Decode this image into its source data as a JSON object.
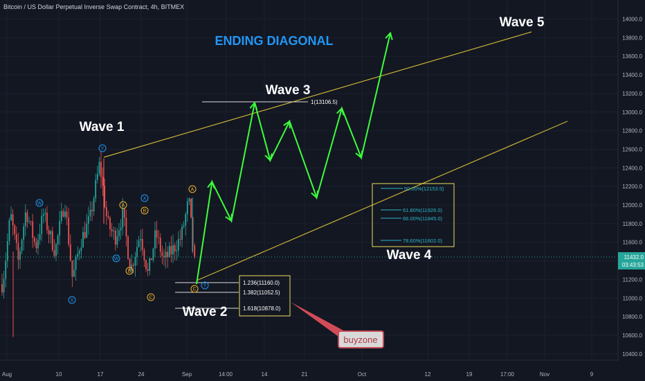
{
  "header": {
    "title": "Bitcoin / US Dollar Perpetual Inverse Swap Contract, 4h, BITMEX"
  },
  "colors": {
    "bg": "#131722",
    "grid": "#1c2030",
    "axis_text": "#b2b5be",
    "up_candle": "#26a69a",
    "down_candle": "#ef5350",
    "wave_arrow": "#3dff3d",
    "trendline": "#c9b236",
    "fib_box": "#e8e05a",
    "fib_text": "#2bb7c9",
    "headline": "#2196f3",
    "price_badge": "#26a69a"
  },
  "annotations": {
    "headline": "ENDING DIAGONAL",
    "wave_labels": [
      "Wave 1",
      "Wave 2",
      "Wave 3",
      "Wave 4",
      "Wave 5"
    ],
    "wave3_target": "1(13106.5)",
    "buyzone_levels": [
      "1.236(11160.0)",
      "1.382(11052.5)",
      "1.618(10878.0)"
    ],
    "retrace_levels": [
      "50.00%(12153.5)",
      "61.80%(11926.0)",
      "66.00%(11845.0)",
      "78.60%(11602.0)"
    ],
    "callout": "buyzone",
    "elliott_markers": [
      {
        "label": "W",
        "color": "#2196f3"
      },
      {
        "label": "X",
        "color": "#2196f3"
      },
      {
        "label": "Y",
        "color": "#2196f3"
      },
      {
        "label": "W",
        "color": "#2196f3"
      },
      {
        "label": "X",
        "color": "#2196f3"
      },
      {
        "label": "Y",
        "color": "#2196f3"
      },
      {
        "label": "A",
        "color": "#f0b429"
      },
      {
        "label": "B",
        "color": "#f0b429"
      },
      {
        "label": "C",
        "color": "#f0b429"
      },
      {
        "label": "A",
        "color": "#f0b429"
      },
      {
        "label": "B",
        "color": "#f0b429"
      },
      {
        "label": "C",
        "color": "#f0b429"
      }
    ]
  },
  "price_badge": {
    "price": "11432.0",
    "countdown": "03:43:53"
  },
  "chart_data": {
    "type": "line",
    "title": "Bitcoin / US Dollar Perpetual Inverse Swap Contract, 4h, BITMEX",
    "xlabel": "",
    "ylabel": "",
    "x_tick_labels": [
      "Aug",
      "10",
      "17",
      "24",
      "Sep",
      "14:00",
      "14",
      "21",
      "Oct",
      "12",
      "19",
      "17:00",
      "Nov",
      "9"
    ],
    "y_tick_labels": [
      "10400.0",
      "10600.0",
      "10800.0",
      "11000.0",
      "11200.0",
      "11400.0",
      "11600.0",
      "11800.0",
      "12000.0",
      "12200.0",
      "12400.0",
      "12600.0",
      "12800.0",
      "13000.0",
      "13200.0",
      "13400.0",
      "13600.0",
      "13800.0",
      "14000.0"
    ],
    "ylim": [
      10260,
      14100
    ],
    "grid": true,
    "current_price": 11432.0,
    "series": [
      {
        "name": "projected wave path",
        "points": [
          [
            1.0,
            11150
          ],
          [
            1.08,
            12250
          ],
          [
            1.18,
            11830
          ],
          [
            1.3,
            13100
          ],
          [
            1.38,
            12480
          ],
          [
            1.48,
            12900
          ],
          [
            1.62,
            12080
          ],
          [
            1.75,
            13040
          ],
          [
            1.85,
            12510
          ],
          [
            2.0,
            13850
          ]
        ]
      }
    ],
    "price_history_points": [
      [
        0.0,
        11150
      ],
      [
        0.04,
        11900
      ],
      [
        0.08,
        11400
      ],
      [
        0.12,
        11950
      ],
      [
        0.17,
        11550
      ],
      [
        0.21,
        11900
      ],
      [
        0.27,
        11500
      ],
      [
        0.32,
        12050
      ],
      [
        0.36,
        11200
      ],
      [
        0.4,
        11600
      ],
      [
        0.45,
        11850
      ],
      [
        0.5,
        12450
      ],
      [
        0.54,
        11800
      ],
      [
        0.58,
        11650
      ],
      [
        0.62,
        11900
      ],
      [
        0.66,
        11300
      ],
      [
        0.71,
        11700
      ],
      [
        0.75,
        11250
      ],
      [
        0.79,
        11700
      ],
      [
        0.83,
        11400
      ],
      [
        0.87,
        11500
      ],
      [
        0.92,
        11650
      ],
      [
        0.96,
        12050
      ],
      [
        1.0,
        11150
      ]
    ]
  }
}
